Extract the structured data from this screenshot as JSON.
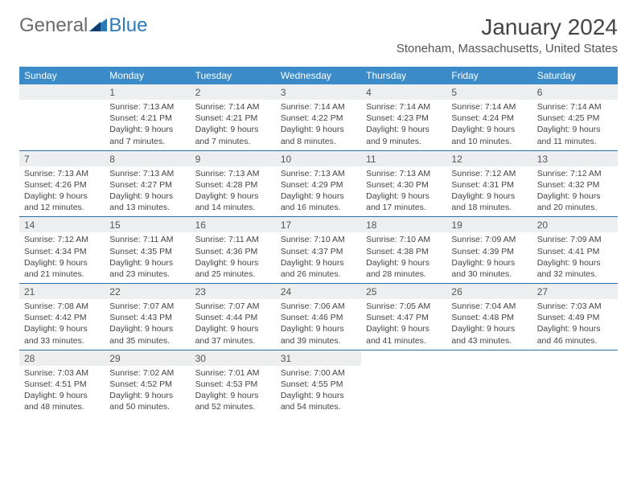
{
  "logo": {
    "part1": "General",
    "part2": "Blue"
  },
  "title": "January 2024",
  "location": "Stoneham, Massachusetts, United States",
  "colors": {
    "header_bg": "#3b8bc9",
    "header_text": "#ffffff",
    "daynum_bg": "#eceef0",
    "rule": "#2f6ea3",
    "logo_blue": "#2a7ab9"
  },
  "weekdays": [
    "Sunday",
    "Monday",
    "Tuesday",
    "Wednesday",
    "Thursday",
    "Friday",
    "Saturday"
  ],
  "weeks": [
    [
      null,
      {
        "n": "1",
        "sr": "Sunrise: 7:13 AM",
        "ss": "Sunset: 4:21 PM",
        "dl": "Daylight: 9 hours and 7 minutes."
      },
      {
        "n": "2",
        "sr": "Sunrise: 7:14 AM",
        "ss": "Sunset: 4:21 PM",
        "dl": "Daylight: 9 hours and 7 minutes."
      },
      {
        "n": "3",
        "sr": "Sunrise: 7:14 AM",
        "ss": "Sunset: 4:22 PM",
        "dl": "Daylight: 9 hours and 8 minutes."
      },
      {
        "n": "4",
        "sr": "Sunrise: 7:14 AM",
        "ss": "Sunset: 4:23 PM",
        "dl": "Daylight: 9 hours and 9 minutes."
      },
      {
        "n": "5",
        "sr": "Sunrise: 7:14 AM",
        "ss": "Sunset: 4:24 PM",
        "dl": "Daylight: 9 hours and 10 minutes."
      },
      {
        "n": "6",
        "sr": "Sunrise: 7:14 AM",
        "ss": "Sunset: 4:25 PM",
        "dl": "Daylight: 9 hours and 11 minutes."
      }
    ],
    [
      {
        "n": "7",
        "sr": "Sunrise: 7:13 AM",
        "ss": "Sunset: 4:26 PM",
        "dl": "Daylight: 9 hours and 12 minutes."
      },
      {
        "n": "8",
        "sr": "Sunrise: 7:13 AM",
        "ss": "Sunset: 4:27 PM",
        "dl": "Daylight: 9 hours and 13 minutes."
      },
      {
        "n": "9",
        "sr": "Sunrise: 7:13 AM",
        "ss": "Sunset: 4:28 PM",
        "dl": "Daylight: 9 hours and 14 minutes."
      },
      {
        "n": "10",
        "sr": "Sunrise: 7:13 AM",
        "ss": "Sunset: 4:29 PM",
        "dl": "Daylight: 9 hours and 16 minutes."
      },
      {
        "n": "11",
        "sr": "Sunrise: 7:13 AM",
        "ss": "Sunset: 4:30 PM",
        "dl": "Daylight: 9 hours and 17 minutes."
      },
      {
        "n": "12",
        "sr": "Sunrise: 7:12 AM",
        "ss": "Sunset: 4:31 PM",
        "dl": "Daylight: 9 hours and 18 minutes."
      },
      {
        "n": "13",
        "sr": "Sunrise: 7:12 AM",
        "ss": "Sunset: 4:32 PM",
        "dl": "Daylight: 9 hours and 20 minutes."
      }
    ],
    [
      {
        "n": "14",
        "sr": "Sunrise: 7:12 AM",
        "ss": "Sunset: 4:34 PM",
        "dl": "Daylight: 9 hours and 21 minutes."
      },
      {
        "n": "15",
        "sr": "Sunrise: 7:11 AM",
        "ss": "Sunset: 4:35 PM",
        "dl": "Daylight: 9 hours and 23 minutes."
      },
      {
        "n": "16",
        "sr": "Sunrise: 7:11 AM",
        "ss": "Sunset: 4:36 PM",
        "dl": "Daylight: 9 hours and 25 minutes."
      },
      {
        "n": "17",
        "sr": "Sunrise: 7:10 AM",
        "ss": "Sunset: 4:37 PM",
        "dl": "Daylight: 9 hours and 26 minutes."
      },
      {
        "n": "18",
        "sr": "Sunrise: 7:10 AM",
        "ss": "Sunset: 4:38 PM",
        "dl": "Daylight: 9 hours and 28 minutes."
      },
      {
        "n": "19",
        "sr": "Sunrise: 7:09 AM",
        "ss": "Sunset: 4:39 PM",
        "dl": "Daylight: 9 hours and 30 minutes."
      },
      {
        "n": "20",
        "sr": "Sunrise: 7:09 AM",
        "ss": "Sunset: 4:41 PM",
        "dl": "Daylight: 9 hours and 32 minutes."
      }
    ],
    [
      {
        "n": "21",
        "sr": "Sunrise: 7:08 AM",
        "ss": "Sunset: 4:42 PM",
        "dl": "Daylight: 9 hours and 33 minutes."
      },
      {
        "n": "22",
        "sr": "Sunrise: 7:07 AM",
        "ss": "Sunset: 4:43 PM",
        "dl": "Daylight: 9 hours and 35 minutes."
      },
      {
        "n": "23",
        "sr": "Sunrise: 7:07 AM",
        "ss": "Sunset: 4:44 PM",
        "dl": "Daylight: 9 hours and 37 minutes."
      },
      {
        "n": "24",
        "sr": "Sunrise: 7:06 AM",
        "ss": "Sunset: 4:46 PM",
        "dl": "Daylight: 9 hours and 39 minutes."
      },
      {
        "n": "25",
        "sr": "Sunrise: 7:05 AM",
        "ss": "Sunset: 4:47 PM",
        "dl": "Daylight: 9 hours and 41 minutes."
      },
      {
        "n": "26",
        "sr": "Sunrise: 7:04 AM",
        "ss": "Sunset: 4:48 PM",
        "dl": "Daylight: 9 hours and 43 minutes."
      },
      {
        "n": "27",
        "sr": "Sunrise: 7:03 AM",
        "ss": "Sunset: 4:49 PM",
        "dl": "Daylight: 9 hours and 46 minutes."
      }
    ],
    [
      {
        "n": "28",
        "sr": "Sunrise: 7:03 AM",
        "ss": "Sunset: 4:51 PM",
        "dl": "Daylight: 9 hours and 48 minutes."
      },
      {
        "n": "29",
        "sr": "Sunrise: 7:02 AM",
        "ss": "Sunset: 4:52 PM",
        "dl": "Daylight: 9 hours and 50 minutes."
      },
      {
        "n": "30",
        "sr": "Sunrise: 7:01 AM",
        "ss": "Sunset: 4:53 PM",
        "dl": "Daylight: 9 hours and 52 minutes."
      },
      {
        "n": "31",
        "sr": "Sunrise: 7:00 AM",
        "ss": "Sunset: 4:55 PM",
        "dl": "Daylight: 9 hours and 54 minutes."
      },
      null,
      null,
      null
    ]
  ]
}
